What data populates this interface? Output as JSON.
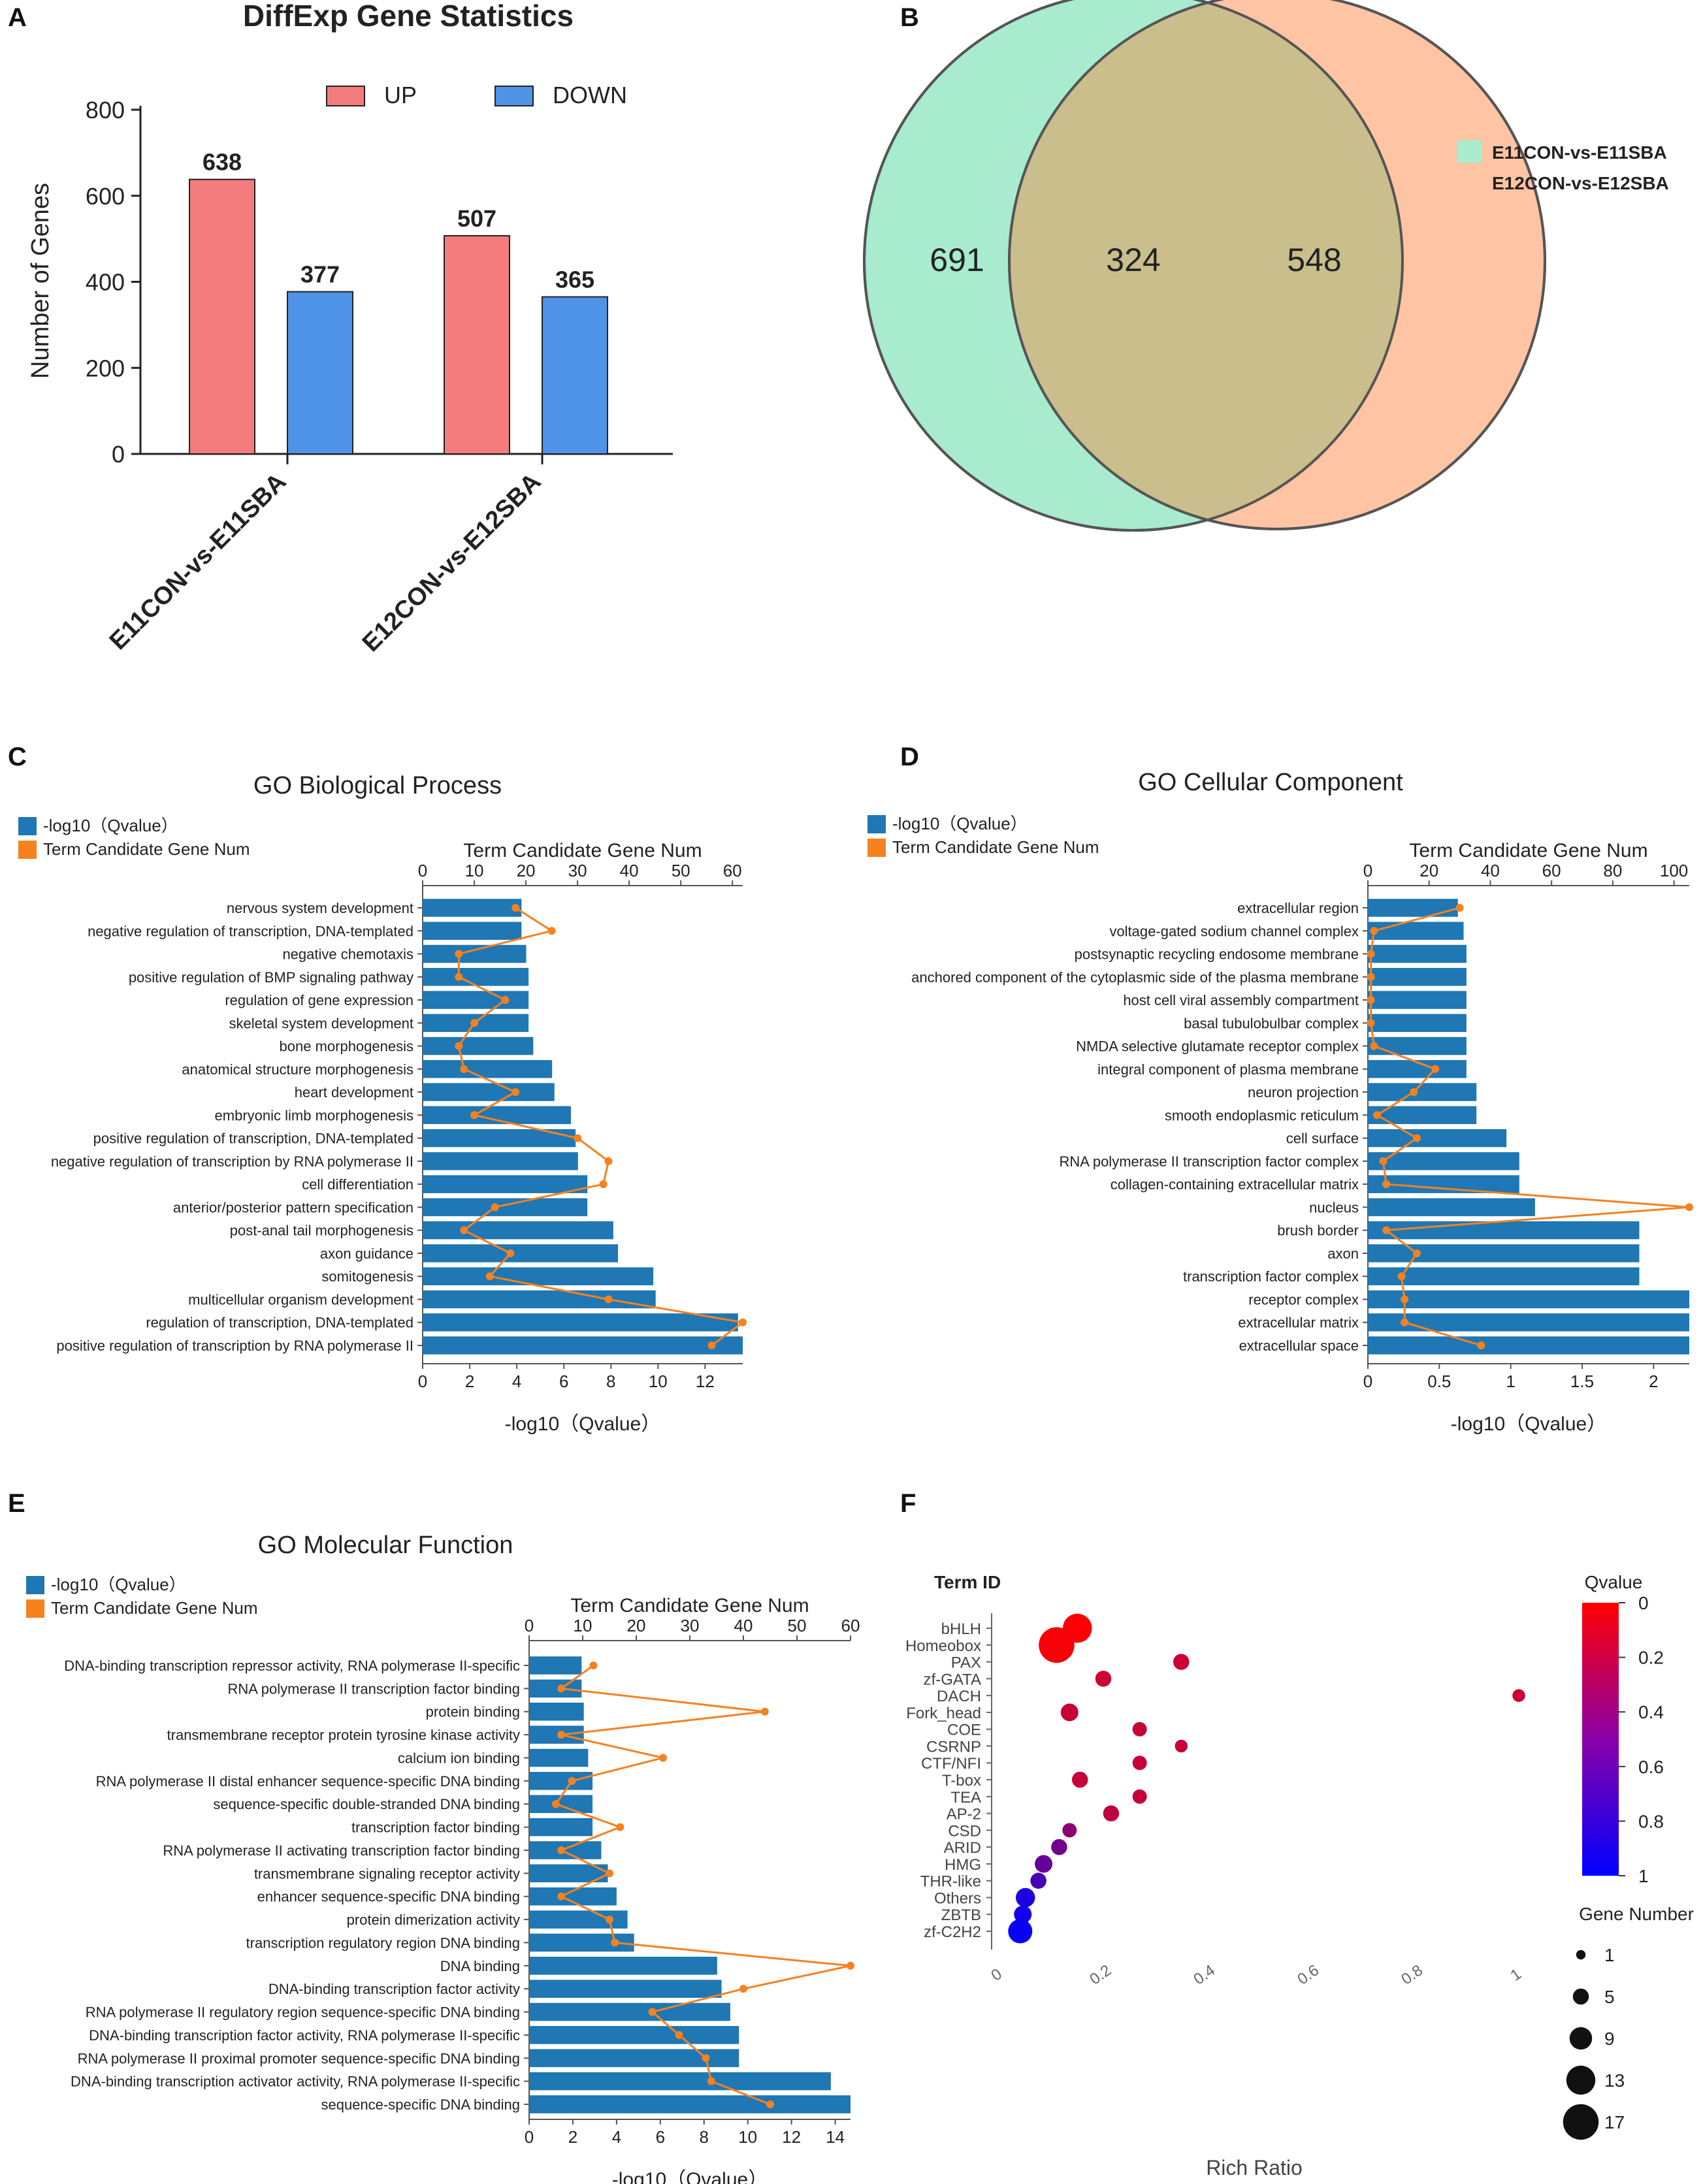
{
  "colors": {
    "up": "#F47C7C",
    "down": "#4F93E8",
    "bar_blue": "#1F77B4",
    "line_orange": "#F5811F",
    "venn_left": "#A8EBCF",
    "venn_right": "#FFC4A3",
    "venn_overlap": "#C9BE8C",
    "q_high": "#FF0000",
    "q_low": "#0000FF"
  },
  "panels": {
    "A": {
      "label": "A"
    },
    "B": {
      "label": "B"
    },
    "C": {
      "label": "C"
    },
    "D": {
      "label": "D"
    },
    "E": {
      "label": "E"
    },
    "F": {
      "label": "F"
    }
  },
  "chart_data": [
    {
      "panel": "A",
      "type": "bar",
      "title": "DiffExp Gene Statistics",
      "ylabel": "Number of Genes",
      "xlabel": "",
      "ylim": [
        0,
        800
      ],
      "yticks": [
        "0",
        "200",
        "400",
        "600",
        "800"
      ],
      "categories": [
        "E11CON-vs-E11SBA",
        "E12CON-vs-E12SBA"
      ],
      "series": [
        {
          "name": "UP",
          "values": [
            638,
            507
          ]
        },
        {
          "name": "DOWN",
          "values": [
            377,
            365
          ]
        }
      ],
      "value_labels": [
        [
          "638",
          "507"
        ],
        [
          "377",
          "365"
        ]
      ],
      "legend": "top-center"
    },
    {
      "panel": "B",
      "type": "venn",
      "sets": [
        "E11CON-vs-E11SBA",
        "E12CON-vs-E12SBA"
      ],
      "values": {
        "only_left": "691",
        "overlap": "324",
        "only_right": "548"
      },
      "legend": "right"
    },
    {
      "panel": "C",
      "type": "bar",
      "orientation": "horizontal",
      "title": "GO Biological Process",
      "legend_items": [
        "-log10（Qvalue）",
        "Term Candidate Gene Num"
      ],
      "top_axis_title": "Term Candidate Gene Num",
      "top_ticks": [
        "0",
        "10",
        "20",
        "30",
        "40",
        "50",
        "60"
      ],
      "top_max": 62,
      "bottom_ticks": [
        "0",
        "2",
        "4",
        "6",
        "8",
        "10",
        "12"
      ],
      "bottom_max": 13.6,
      "xlabel": "-log10（Qvalue）",
      "categories": [
        "nervous system development",
        "negative regulation of transcription, DNA-templated",
        "negative chemotaxis",
        "positive regulation of BMP signaling pathway",
        "regulation of gene expression",
        "skeletal system development",
        "bone morphogenesis",
        "anatomical structure morphogenesis",
        "heart development",
        "embryonic limb morphogenesis",
        "positive regulation of transcription, DNA-templated",
        "negative regulation of transcription by RNA polymerase II",
        "cell differentiation",
        "anterior/posterior pattern specification",
        "post-anal tail morphogenesis",
        "axon guidance",
        "somitogenesis",
        "multicellular organism development",
        "regulation of transcription, DNA-templated",
        "positive regulation of transcription by RNA polymerase II"
      ],
      "qvalue_neglog10": [
        4.2,
        4.2,
        4.4,
        4.5,
        4.5,
        4.5,
        4.7,
        5.5,
        5.6,
        6.3,
        6.5,
        6.6,
        7.0,
        7.0,
        8.1,
        8.3,
        9.8,
        9.9,
        13.4,
        13.6
      ],
      "gene_num": [
        18,
        25,
        7,
        7,
        16,
        10,
        7,
        8,
        18,
        10,
        30,
        36,
        35,
        14,
        8,
        17,
        13,
        36,
        62,
        56
      ]
    },
    {
      "panel": "D",
      "type": "bar",
      "orientation": "horizontal",
      "title": "GO Cellular Component",
      "legend_items": [
        "-log10（Qvalue）",
        "Term Candidate Gene Num"
      ],
      "top_axis_title": "Term Candidate Gene Num",
      "top_ticks": [
        "0",
        "20",
        "40",
        "60",
        "80",
        "100"
      ],
      "top_max": 105,
      "bottom_ticks": [
        "0",
        "0.5",
        "1",
        "1.5",
        "2"
      ],
      "bottom_max": 2.25,
      "xlabel": "-log10（Qvalue）",
      "categories": [
        "extracellular region",
        "voltage-gated sodium channel complex",
        "postsynaptic recycling endosome membrane",
        "anchored component of the cytoplasmic side of the plasma membrane",
        "host cell viral assembly compartment",
        "basal tubulobulbar complex",
        "NMDA selective glutamate receptor complex",
        "integral component of plasma membrane",
        "neuron projection",
        "smooth endoplasmic reticulum",
        "cell surface",
        "RNA polymerase II transcription factor complex",
        "collagen-containing extracellular matrix",
        "nucleus",
        "brush border",
        "axon",
        "transcription factor complex",
        "receptor complex",
        "extracellular matrix",
        "extracellular space"
      ],
      "qvalue_neglog10": [
        0.63,
        0.67,
        0.69,
        0.69,
        0.69,
        0.69,
        0.69,
        0.69,
        0.76,
        0.76,
        0.97,
        1.06,
        1.06,
        1.17,
        1.9,
        1.9,
        1.9,
        2.25,
        2.25,
        2.25
      ],
      "gene_num": [
        30,
        2,
        1,
        1,
        1,
        1,
        2,
        22,
        15,
        3,
        16,
        5,
        6,
        105,
        6,
        16,
        11,
        12,
        12,
        37
      ]
    },
    {
      "panel": "E",
      "type": "bar",
      "orientation": "horizontal",
      "title": "GO Molecular Function",
      "legend_items": [
        "-log10（Qvalue）",
        "Term Candidate Gene Num"
      ],
      "top_axis_title": "Term Candidate Gene Num",
      "top_ticks": [
        "0",
        "10",
        "20",
        "30",
        "40",
        "50",
        "60"
      ],
      "top_max": 60,
      "bottom_ticks": [
        "0",
        "2",
        "4",
        "6",
        "8",
        "10",
        "12",
        "14"
      ],
      "bottom_max": 14.7,
      "xlabel": "-log10（Qvalue）",
      "categories": [
        "DNA-binding transcription repressor activity, RNA polymerase II-specific",
        "RNA polymerase II transcription factor binding",
        "protein binding",
        "transmembrane receptor protein tyrosine kinase activity",
        "calcium ion binding",
        "RNA polymerase II distal enhancer sequence-specific DNA binding",
        "sequence-specific double-stranded DNA binding",
        "transcription factor binding",
        "RNA polymerase II activating transcription factor binding",
        "transmembrane signaling receptor activity",
        "enhancer sequence-specific DNA binding",
        "protein dimerization activity",
        "transcription regulatory region DNA binding",
        "DNA binding",
        "DNA-binding transcription factor activity",
        "RNA polymerase II regulatory region sequence-specific DNA binding",
        "DNA-binding transcription factor activity, RNA polymerase II-specific",
        "RNA polymerase II proximal promoter sequence-specific DNA binding",
        "DNA-binding transcription activator activity, RNA polymerase II-specific",
        "sequence-specific DNA binding"
      ],
      "qvalue_neglog10": [
        2.4,
        2.4,
        2.5,
        2.5,
        2.7,
        2.9,
        2.9,
        2.9,
        3.3,
        3.6,
        4.0,
        4.5,
        4.8,
        8.6,
        8.8,
        9.2,
        9.6,
        9.6,
        13.8,
        14.7
      ],
      "gene_num": [
        12,
        6,
        44,
        6,
        25,
        8,
        5,
        17,
        6,
        15,
        6,
        15,
        16,
        60,
        40,
        23,
        28,
        33,
        34,
        45
      ]
    },
    {
      "panel": "F",
      "type": "scatter",
      "ylabel": "Term ID",
      "xlabel": "Rich Ratio",
      "xticks": [
        "0",
        "0.2",
        "0.4",
        "0.6",
        "0.8",
        "1"
      ],
      "xlim": [
        0,
        1
      ],
      "categories": [
        "bHLH",
        "Homeobox",
        "PAX",
        "zf-GATA",
        "DACH",
        "Fork_head",
        "COE",
        "CSRNP",
        "CTF/NFI",
        "T-box",
        "TEA",
        "AP-2",
        "CSD",
        "ARID",
        "HMG",
        "THR-like",
        "Others",
        "ZBTB",
        "zf-C2H2"
      ],
      "rich_ratio": [
        0.15,
        0.11,
        0.35,
        0.2,
        1.0,
        0.135,
        0.27,
        0.35,
        0.27,
        0.155,
        0.27,
        0.215,
        0.135,
        0.115,
        0.085,
        0.075,
        0.05,
        0.045,
        0.04
      ],
      "qvalue": [
        0.01,
        0.03,
        0.2,
        0.2,
        0.2,
        0.22,
        0.22,
        0.22,
        0.22,
        0.22,
        0.22,
        0.25,
        0.45,
        0.55,
        0.6,
        0.72,
        0.88,
        0.92,
        0.97
      ],
      "gene_number": [
        13,
        17,
        5,
        5,
        3,
        6,
        4,
        3,
        4,
        5,
        4,
        5,
        4,
        5,
        6,
        5,
        7,
        6,
        10
      ],
      "color_legend_title": "Qvalue",
      "color_ticks": [
        "0",
        "0.2",
        "0.4",
        "0.6",
        "0.8",
        "1"
      ],
      "size_legend_title": "Gene Number",
      "size_legend": [
        "1",
        "5",
        "9",
        "13",
        "17"
      ]
    }
  ]
}
